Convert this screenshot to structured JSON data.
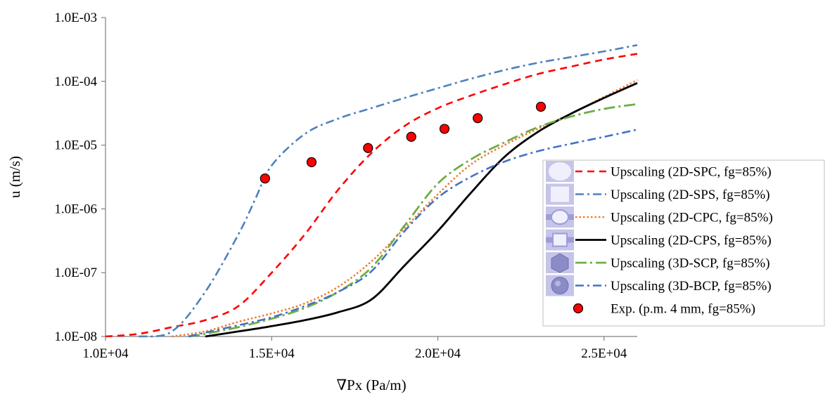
{
  "chart_data": {
    "type": "line",
    "xlabel": "∇Px (Pa/m)",
    "ylabel": "u (m/s)",
    "xlim": [
      10000,
      26000
    ],
    "ylim": [
      1e-08,
      0.001
    ],
    "yscale": "log",
    "x_ticks": [
      10000,
      15000,
      20000,
      25000
    ],
    "x_tick_labels": [
      "1.0E+04",
      "1.5E+04",
      "2.0E+04",
      "2.5E+04"
    ],
    "y_ticks": [
      1e-08,
      1e-07,
      1e-06,
      1e-05,
      0.0001,
      0.001
    ],
    "y_tick_labels": [
      "1.0E-08",
      "1.0E-07",
      "1.0E-06",
      "1.0E-05",
      "1.0E-04",
      "1.0E-03"
    ],
    "grid": false,
    "legend_position": "right",
    "series": [
      {
        "name": "Upscaling (2D-SPC, fg=85%)",
        "color": "#ff0000",
        "style": "dash",
        "icon": "circle-pore-icon",
        "x": [
          10000,
          11000,
          12000,
          13000,
          14000,
          15000,
          16000,
          17000,
          18000,
          19000,
          20000,
          21000,
          22000,
          23000,
          24000,
          25000,
          26000
        ],
        "y": [
          1e-08,
          1.1e-08,
          1.4e-08,
          1.8e-08,
          3e-08,
          1e-07,
          4e-07,
          2e-06,
          7.5e-06,
          2e-05,
          3.8e-05,
          6e-05,
          9e-05,
          0.00013,
          0.00017,
          0.00022,
          0.00027
        ]
      },
      {
        "name": "Upscaling (2D-SPS, fg=85%)",
        "color": "#4f81bd",
        "style": "dashdot",
        "icon": "square-pore-icon",
        "x": [
          11000,
          12000,
          13000,
          14000,
          14500,
          15000,
          16000,
          17000,
          18000,
          19000,
          20000,
          21000,
          22000,
          23000,
          24000,
          25000,
          26000
        ],
        "y": [
          1e-08,
          1.2e-08,
          5e-08,
          4e-07,
          1.4e-06,
          4.8e-06,
          1.5e-05,
          2.6e-05,
          3.8e-05,
          5.5e-05,
          7.8e-05,
          0.00011,
          0.00015,
          0.000195,
          0.00024,
          0.000295,
          0.00037
        ]
      },
      {
        "name": "Upscaling (2D-CPC, fg=85%)",
        "color": "#ed7d31",
        "style": "dot",
        "icon": "cross-circle-pore-icon",
        "x": [
          12000,
          13000,
          14000,
          15000,
          16000,
          17000,
          18000,
          19000,
          20000,
          21000,
          22000,
          23000,
          24000,
          25000,
          26000
        ],
        "y": [
          1e-08,
          1.2e-08,
          1.7e-08,
          2.3e-08,
          3.3e-08,
          6e-08,
          1.5e-07,
          5e-07,
          1.7e-06,
          5e-06,
          1e-05,
          1.8e-05,
          3.1e-05,
          5.7e-05,
          0.000105
        ]
      },
      {
        "name": "Upscaling (2D-CPS, fg=85%)",
        "color": "#000000",
        "style": "solid",
        "icon": "cross-square-pore-icon",
        "x": [
          13000,
          14000,
          15000,
          16000,
          17000,
          18000,
          19000,
          20000,
          21000,
          22000,
          23000,
          24000,
          25000,
          26000
        ],
        "y": [
          1e-08,
          1.2e-08,
          1.45e-08,
          1.8e-08,
          2.4e-08,
          3.8e-08,
          1.3e-07,
          4.5e-07,
          1.8e-06,
          6.5e-06,
          1.6e-05,
          3.1e-05,
          5.5e-05,
          9.4e-05
        ]
      },
      {
        "name": "Upscaling (3D-SCP, fg=85%)",
        "color": "#70ad47",
        "style": "longdashdot",
        "icon": "cube-pore-icon",
        "x": [
          12500,
          13000,
          14000,
          15000,
          16000,
          17000,
          18000,
          19000,
          20000,
          21000,
          22000,
          23000,
          24000,
          25000,
          26000
        ],
        "y": [
          1e-08,
          1.1e-08,
          1.4e-08,
          1.9e-08,
          2.8e-08,
          5e-08,
          1.2e-07,
          5.5e-07,
          2.5e-06,
          6e-06,
          1.1e-05,
          1.9e-05,
          2.8e-05,
          3.7e-05,
          4.4e-05
        ]
      },
      {
        "name": "Upscaling (3D-BCP, fg=85%)",
        "color": "#4472c4",
        "style": "dashdot",
        "icon": "sphere-pore-icon",
        "x": [
          12500,
          13000,
          14000,
          15000,
          16000,
          17000,
          18000,
          19000,
          20000,
          21000,
          22000,
          23000,
          24000,
          25000,
          26000
        ],
        "y": [
          1e-08,
          1.15e-08,
          1.5e-08,
          2e-08,
          3e-08,
          5e-08,
          1.05e-07,
          4.5e-07,
          1.5e-06,
          3.2e-06,
          5.5e-06,
          8e-06,
          1.05e-05,
          1.35e-05,
          1.75e-05
        ]
      },
      {
        "name": "Exp. (p.m. 4 mm, fg=85%)",
        "color": "#ff0000",
        "style": "marker",
        "x": [
          14800,
          16200,
          17900,
          19200,
          20200,
          21200,
          23100
        ],
        "y": [
          3e-06,
          5.4e-06,
          9e-06,
          1.35e-05,
          1.8e-05,
          2.65e-05,
          4e-05
        ]
      }
    ]
  }
}
